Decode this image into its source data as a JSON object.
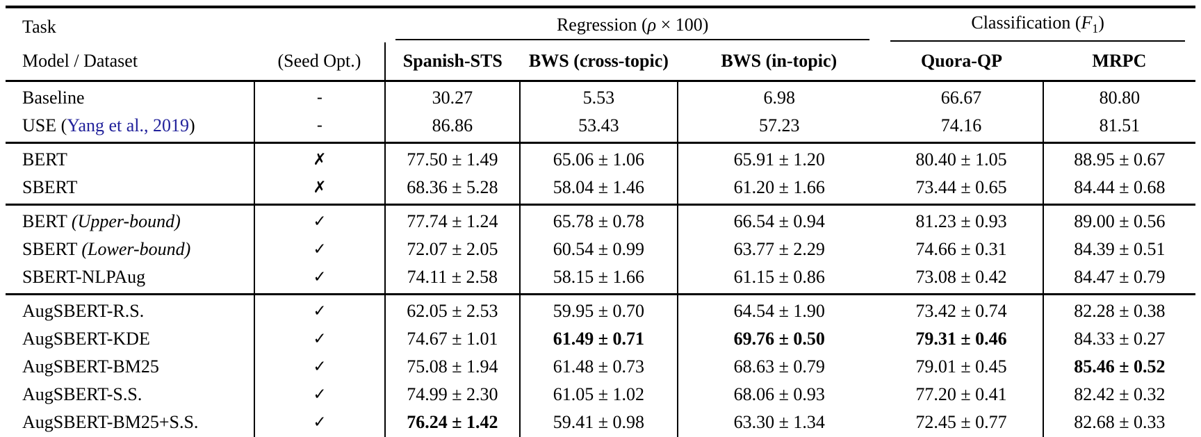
{
  "table": {
    "colors": {
      "citation": "#22229B",
      "text": "#000000"
    },
    "header": {
      "task": "Task",
      "model_dataset": "Model / Dataset",
      "seed_opt": "(Seed Opt.)",
      "groups": [
        {
          "label_prefix": "Regression (",
          "math": "ρ",
          "label_suffix": " × 100)",
          "span": 3
        },
        {
          "label_prefix": "Classification (",
          "math": "F",
          "subscript": "1",
          "label_suffix": ")",
          "span": 2
        }
      ],
      "columns": [
        "Spanish-STS",
        "BWS (cross-topic)",
        "BWS (in-topic)",
        "Quora-QP",
        "MRPC"
      ]
    },
    "sections": [
      {
        "rows": [
          {
            "model": [
              {
                "t": "Baseline"
              }
            ],
            "seed": "-",
            "values": [
              {
                "v": "30.27"
              },
              {
                "v": "5.53"
              },
              {
                "v": "6.98"
              },
              {
                "v": "66.67"
              },
              {
                "v": "80.80"
              }
            ]
          },
          {
            "model": [
              {
                "t": "USE ("
              },
              {
                "t": "Yang et al., 2019",
                "s": "cite"
              },
              {
                "t": ")"
              }
            ],
            "seed": "-",
            "values": [
              {
                "v": "86.86"
              },
              {
                "v": "53.43"
              },
              {
                "v": "57.23"
              },
              {
                "v": "74.16"
              },
              {
                "v": "81.51"
              }
            ]
          }
        ]
      },
      {
        "rows": [
          {
            "model": [
              {
                "t": "BERT"
              }
            ],
            "seed": "✗",
            "values": [
              {
                "v": "77.50 ± 1.49"
              },
              {
                "v": "65.06 ± 1.06"
              },
              {
                "v": "65.91 ± 1.20"
              },
              {
                "v": "80.40 ± 1.05"
              },
              {
                "v": "88.95 ± 0.67"
              }
            ]
          },
          {
            "model": [
              {
                "t": "SBERT"
              }
            ],
            "seed": "✗",
            "values": [
              {
                "v": "68.36 ± 5.28"
              },
              {
                "v": "58.04 ± 1.46"
              },
              {
                "v": "61.20 ± 1.66"
              },
              {
                "v": "73.44 ± 0.65"
              },
              {
                "v": "84.44 ± 0.68"
              }
            ]
          }
        ]
      },
      {
        "rows": [
          {
            "model": [
              {
                "t": "BERT "
              },
              {
                "t": "(Upper-bound)",
                "s": "italic"
              }
            ],
            "seed": "✓",
            "values": [
              {
                "v": "77.74 ± 1.24"
              },
              {
                "v": "65.78 ± 0.78"
              },
              {
                "v": "66.54 ± 0.94"
              },
              {
                "v": "81.23 ± 0.93"
              },
              {
                "v": "89.00 ± 0.56"
              }
            ]
          },
          {
            "model": [
              {
                "t": "SBERT "
              },
              {
                "t": "(Lower-bound)",
                "s": "italic"
              }
            ],
            "seed": "✓",
            "values": [
              {
                "v": "72.07 ± 2.05"
              },
              {
                "v": "60.54 ± 0.99"
              },
              {
                "v": "63.77 ± 2.29"
              },
              {
                "v": "74.66 ± 0.31"
              },
              {
                "v": "84.39 ± 0.51"
              }
            ]
          },
          {
            "model": [
              {
                "t": "SBERT-NLPAug"
              }
            ],
            "seed": "✓",
            "values": [
              {
                "v": "74.11 ± 2.58"
              },
              {
                "v": "58.15 ± 1.66"
              },
              {
                "v": "61.15 ± 0.86"
              },
              {
                "v": "73.08 ± 0.42"
              },
              {
                "v": "84.47 ± 0.79"
              }
            ]
          }
        ]
      },
      {
        "rows": [
          {
            "model": [
              {
                "t": "AugSBERT-R.S."
              }
            ],
            "seed": "✓",
            "values": [
              {
                "v": "62.05 ± 2.53"
              },
              {
                "v": "59.95 ± 0.70"
              },
              {
                "v": "64.54 ± 1.90"
              },
              {
                "v": "73.42 ± 0.74"
              },
              {
                "v": "82.28 ± 0.38"
              }
            ]
          },
          {
            "model": [
              {
                "t": "AugSBERT-KDE"
              }
            ],
            "seed": "✓",
            "values": [
              {
                "v": "74.67 ± 1.01"
              },
              {
                "v": "61.49 ± 0.71",
                "b": true
              },
              {
                "v": "69.76 ± 0.50",
                "b": true
              },
              {
                "v": "79.31 ± 0.46",
                "b": true
              },
              {
                "v": "84.33 ± 0.27"
              }
            ]
          },
          {
            "model": [
              {
                "t": "AugSBERT-BM25"
              }
            ],
            "seed": "✓",
            "values": [
              {
                "v": "75.08 ± 1.94"
              },
              {
                "v": "61.48 ± 0.73"
              },
              {
                "v": "68.63 ± 0.79"
              },
              {
                "v": "79.01 ± 0.45"
              },
              {
                "v": "85.46 ± 0.52",
                "b": true
              }
            ]
          },
          {
            "model": [
              {
                "t": "AugSBERT-S.S."
              }
            ],
            "seed": "✓",
            "values": [
              {
                "v": "74.99 ± 2.30"
              },
              {
                "v": "61.05 ± 1.02"
              },
              {
                "v": "68.06 ± 0.93"
              },
              {
                "v": "77.20 ± 0.41"
              },
              {
                "v": "82.42 ± 0.32"
              }
            ]
          },
          {
            "model": [
              {
                "t": "AugSBERT-BM25+S.S."
              }
            ],
            "seed": "✓",
            "values": [
              {
                "v": "76.24 ± 1.42",
                "b": true
              },
              {
                "v": "59.41 ± 0.98"
              },
              {
                "v": "63.30 ± 1.34"
              },
              {
                "v": "72.45 ± 0.77"
              },
              {
                "v": "82.68 ± 0.33"
              }
            ]
          }
        ]
      }
    ]
  }
}
